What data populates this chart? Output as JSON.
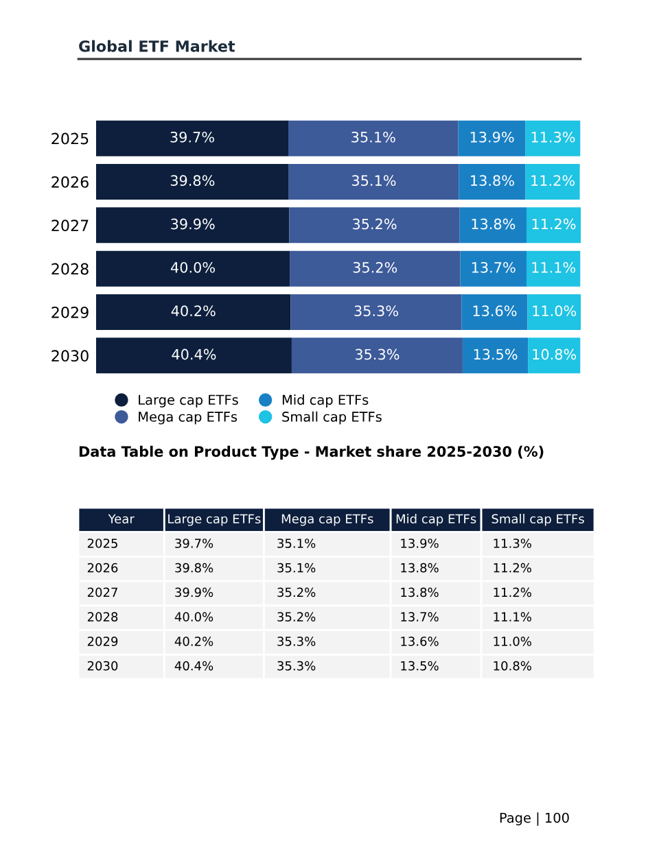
{
  "chart_data": {
    "type": "bar",
    "orientation": "horizontal",
    "stacked": true,
    "title": "Global ETF Market",
    "categories": [
      "2025",
      "2026",
      "2027",
      "2028",
      "2029",
      "2030"
    ],
    "series": [
      {
        "name": "Large cap ETFs",
        "color": "#0d1f3c",
        "values": [
          39.7,
          39.8,
          39.9,
          40.0,
          40.2,
          40.4
        ],
        "value_labels": [
          "39.7%",
          "39.8%",
          "39.9%",
          "40.0%",
          "40.2%",
          "40.4%"
        ]
      },
      {
        "name": "Mega cap ETFs",
        "color": "#3d5a99",
        "values": [
          35.1,
          35.1,
          35.2,
          35.2,
          35.3,
          35.3
        ],
        "value_labels": [
          "35.1%",
          "35.1%",
          "35.2%",
          "35.2%",
          "35.3%",
          "35.3%"
        ]
      },
      {
        "name": "Mid cap ETFs",
        "color": "#1a80c4",
        "values": [
          13.9,
          13.8,
          13.8,
          13.7,
          13.6,
          13.5
        ],
        "value_labels": [
          "13.9%",
          "13.8%",
          "13.8%",
          "13.7%",
          "13.6%",
          "13.5%"
        ]
      },
      {
        "name": "Small cap ETFs",
        "color": "#1fc3e3",
        "values": [
          11.3,
          11.2,
          11.2,
          11.1,
          11.0,
          10.8
        ],
        "value_labels": [
          "11.3%",
          "11.2%",
          "11.2%",
          "11.1%",
          "11.0%",
          "10.8%"
        ]
      }
    ],
    "xlim": [
      0,
      100.1
    ],
    "tick_labels": "y",
    "grid": false,
    "legend": "bottom",
    "annotations": [
      "Data Table on Product Type - Market share 2025-2030 (%)",
      "Year",
      "Page | 100"
    ]
  }
}
